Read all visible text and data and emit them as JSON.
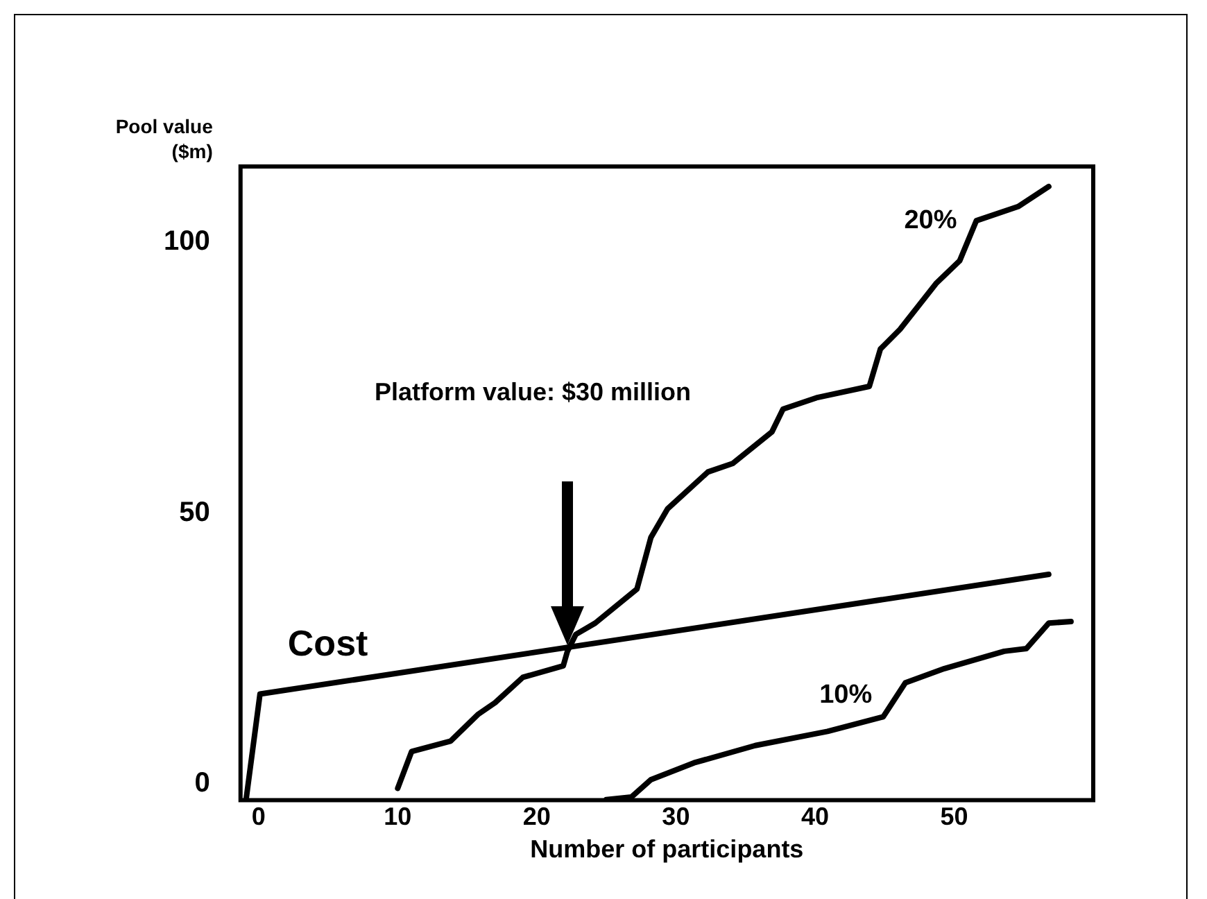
{
  "chart_data": {
    "type": "line",
    "xlabel": "Number of participants",
    "ylabel": "Pool value ($m)",
    "xlim": [
      -1.3,
      60
    ],
    "ylim": [
      -3,
      114
    ],
    "xticks": [
      0,
      10,
      20,
      30,
      40,
      50
    ],
    "yticks": [
      0,
      50,
      100
    ],
    "grid": false,
    "legend": false,
    "marker": "none",
    "annotations": [
      "Platform value: $30 million"
    ],
    "series": [
      {
        "name": "20%",
        "color": "#000000",
        "x": [
          10.0,
          11.0,
          13.8,
          15.8,
          17.0,
          19.0,
          21.9,
          22.2,
          22.8,
          24.2,
          27.2,
          28.2,
          29.4,
          32.3,
          34.1,
          36.9,
          37.7,
          40.1,
          43.9,
          44.7,
          46.1,
          48.7,
          50.4,
          51.6,
          54.6,
          56.8
        ],
        "values": [
          -0.8,
          6.0,
          7.9,
          12.9,
          15.0,
          19.7,
          21.8,
          24.5,
          27.6,
          29.7,
          36.0,
          45.5,
          50.8,
          57.6,
          59.2,
          65.0,
          69.2,
          71.3,
          73.4,
          80.3,
          83.9,
          92.4,
          96.6,
          104.0,
          106.6,
          110.3
        ]
      },
      {
        "name": "10%",
        "color": "#000000",
        "x": [
          25.0,
          26.8,
          28.2,
          31.3,
          35.7,
          40.9,
          44.9,
          46.5,
          49.3,
          53.6,
          55.2,
          56.8,
          58.4
        ],
        "values": [
          -2.9,
          -2.4,
          0.8,
          3.9,
          7.1,
          9.7,
          12.4,
          18.7,
          21.3,
          24.5,
          25.0,
          29.7,
          30.0
        ]
      },
      {
        "name": "Cost",
        "color": "#000000",
        "x": [
          -0.9,
          0.1,
          56.8
        ],
        "values": [
          -2.9,
          16.6,
          38.7
        ]
      }
    ]
  }
}
